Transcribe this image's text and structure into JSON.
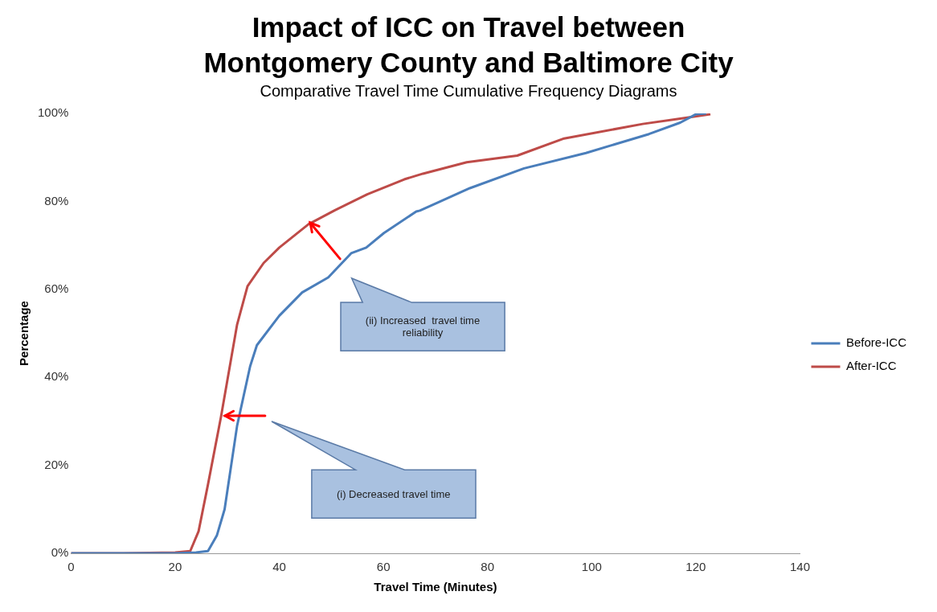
{
  "chart_data": {
    "type": "line",
    "title": "Impact of ICC on Travel between Montgomery County and Baltimore City",
    "subtitle": "Comparative Travel Time Cumulative Frequency Diagrams",
    "xlabel": "Travel Time (Minutes)",
    "ylabel": "Percentage",
    "series": [
      {
        "name": "Before-ICC",
        "color": "#4a7ebb",
        "x": [
          0,
          10,
          20,
          24,
          26.3,
          28,
          29.5,
          31.9,
          34.4,
          35.7,
          40,
          44.4,
          49.4,
          53.8,
          56.7,
          60.1,
          66.3,
          67,
          76.6,
          87,
          98.9,
          111,
          117,
          120,
          122
        ],
        "values": [
          0,
          0,
          0,
          0.2,
          0.5,
          4,
          10,
          29,
          42.5,
          47.3,
          54,
          59.3,
          62.7,
          68.2,
          69.5,
          72.8,
          77.7,
          77.9,
          83,
          87.5,
          91,
          95.3,
          97.9,
          99.8,
          100
        ]
      },
      {
        "name": "After-ICC",
        "color": "#be4b48",
        "x": [
          0,
          10,
          20,
          22.9,
          24.5,
          26.3,
          28.8,
          31.9,
          33.9,
          37,
          40,
          45.6,
          50.7,
          56.9,
          64,
          67.6,
          76,
          85.7,
          94.7,
          109.8,
          117,
          122.8
        ],
        "values": [
          0,
          0,
          0.2,
          0.5,
          5,
          15.6,
          31,
          52,
          60.7,
          66,
          69.5,
          74.8,
          78,
          81.6,
          85,
          86.3,
          88.9,
          90.4,
          94.3,
          97.6,
          98.8,
          99.8
        ]
      }
    ],
    "xlim": [
      0,
      140
    ],
    "xticks": [
      0,
      20,
      40,
      60,
      80,
      100,
      120,
      140
    ],
    "ylim": [
      0,
      100
    ],
    "yticks": [
      {
        "value": 0,
        "label": "0%"
      },
      {
        "value": 20,
        "label": "20%"
      },
      {
        "value": 40,
        "label": "40%"
      },
      {
        "value": 60,
        "label": "60%"
      },
      {
        "value": 80,
        "label": "80%"
      },
      {
        "value": 100,
        "label": "100%"
      }
    ],
    "grid": false,
    "legend": "right",
    "marker": "none",
    "line_style": "solid",
    "annotations": [
      "(ii) Increased  travel time reliability",
      "(i) Decreased travel time"
    ]
  }
}
